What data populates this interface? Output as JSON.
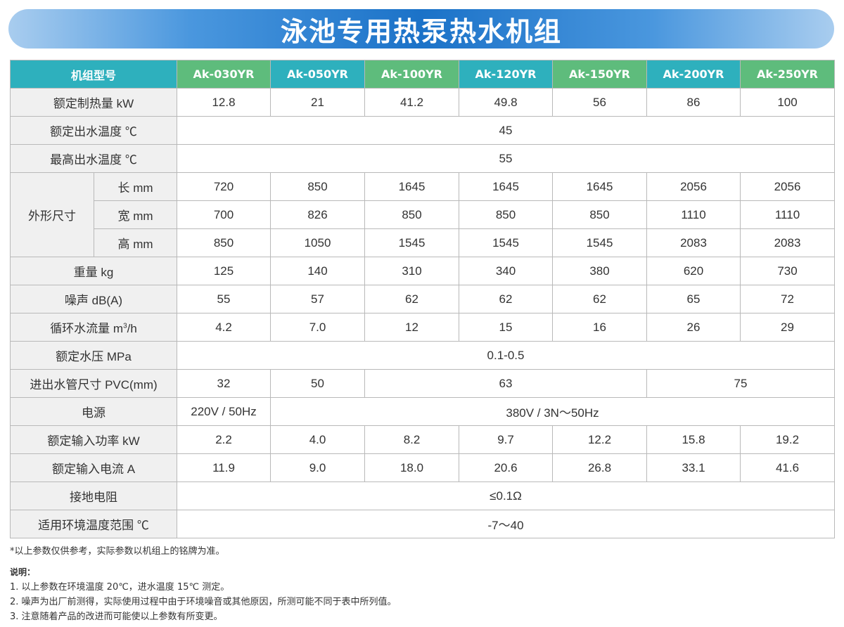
{
  "title": "泳池专用热泵热水机组",
  "table": {
    "header": {
      "label": "机组型号",
      "models": [
        "Ak-030YR",
        "Ak-050YR",
        "Ak-100YR",
        "Ak-120YR",
        "Ak-150YR",
        "Ak-200YR",
        "Ak-250YR"
      ]
    },
    "rows": {
      "heating": {
        "label": "额定制热量 kW",
        "values": [
          "12.8",
          "21",
          "41.2",
          "49.8",
          "56",
          "86",
          "100"
        ]
      },
      "outlet_temp": {
        "label": "额定出水温度 ℃",
        "value": "45"
      },
      "max_temp": {
        "label": "最高出水温度 ℃",
        "value": "55"
      },
      "dimensions": {
        "label": "外形尺寸",
        "length": {
          "label": "长 mm",
          "values": [
            "720",
            "850",
            "1645",
            "1645",
            "1645",
            "2056",
            "2056"
          ]
        },
        "width": {
          "label": "宽 mm",
          "values": [
            "700",
            "826",
            "850",
            "850",
            "850",
            "1110",
            "1110"
          ]
        },
        "height": {
          "label": "高 mm",
          "values": [
            "850",
            "1050",
            "1545",
            "1545",
            "1545",
            "2083",
            "2083"
          ]
        }
      },
      "weight": {
        "label": "重量 kg",
        "values": [
          "125",
          "140",
          "310",
          "340",
          "380",
          "620",
          "730"
        ]
      },
      "noise": {
        "label": "噪声 dB(A)",
        "values": [
          "55",
          "57",
          "62",
          "62",
          "62",
          "65",
          "72"
        ]
      },
      "flow": {
        "label_prefix": "循环水流量 m",
        "label_sup": "3",
        "label_suffix": "/h",
        "values": [
          "4.2",
          "7.0",
          "12",
          "15",
          "16",
          "26",
          "29"
        ]
      },
      "pressure": {
        "label": "额定水压 MPa",
        "value": "0.1-0.5"
      },
      "pipe": {
        "label": "进出水管尺寸 PVC(mm)",
        "values": [
          "32",
          "50",
          "63",
          "75"
        ]
      },
      "power_supply": {
        "label": "电源",
        "values": [
          "220V / 50Hz",
          "380V / 3N～50Hz"
        ]
      },
      "input_power": {
        "label": "额定输入功率 kW",
        "values": [
          "2.2",
          "4.0",
          "8.2",
          "9.7",
          "12.2",
          "15.8",
          "19.2"
        ]
      },
      "input_current": {
        "label": "额定输入电流 A",
        "values": [
          "11.9",
          "9.0",
          "18.0",
          "20.6",
          "26.8",
          "33.1",
          "41.6"
        ]
      },
      "grounding": {
        "label": "接地电阻",
        "value": "≤0.1Ω"
      },
      "ambient": {
        "label": "适用环境温度范围 ℃",
        "value": "-7～40"
      }
    }
  },
  "footnote": "*以上参数仅供参考，实际参数以机组上的铭牌为准。",
  "notes": {
    "heading": "说明：",
    "items": [
      "1. 以上参数在环境温度 20℃，进水温度 15℃ 测定。",
      "2. 噪声为出厂前测得，实际使用过程中由于环境噪音或其他原因，所测可能不同于表中所列值。",
      "3. 注意随着产品的改进而可能使以上参数有所变更。"
    ]
  },
  "colors": {
    "header_teal": "#2eb0bd",
    "header_green": "#5ebc7c",
    "title_blue": "#1b72c8",
    "label_bg": "#f0f0f0",
    "border": "#b9b9b9"
  }
}
